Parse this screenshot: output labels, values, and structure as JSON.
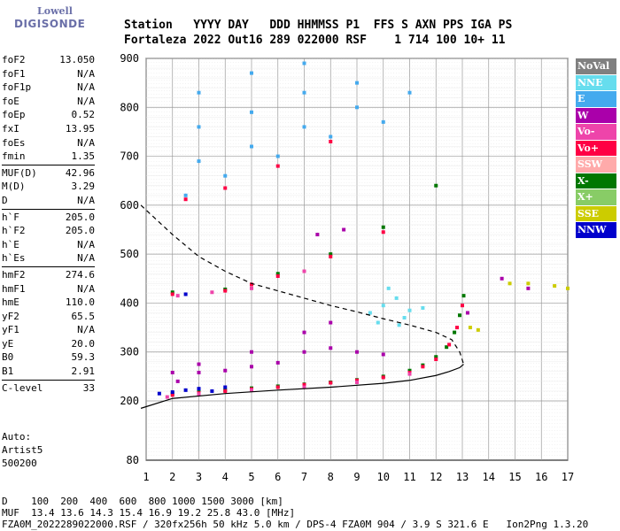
{
  "logo": {
    "line1": "Lowell",
    "line2": "DIGISONDE"
  },
  "header": {
    "line1": "Station   YYYY DAY   DDD HHMMSS P1  FFS S AXN PPS IGA PS",
    "line2": "Fortaleza 2022 Out16 289 022000 RSF    1 714 100 10+ 11"
  },
  "params": [
    [
      {
        "k": "foF2",
        "v": "13.050"
      },
      {
        "k": "foF1",
        "v": "N/A"
      },
      {
        "k": "foF1p",
        "v": "N/A"
      },
      {
        "k": "foE",
        "v": "N/A"
      },
      {
        "k": "foEp",
        "v": "0.52"
      },
      {
        "k": "fxI",
        "v": "13.95"
      },
      {
        "k": "foEs",
        "v": "N/A"
      },
      {
        "k": "fmin",
        "v": "1.35"
      }
    ],
    [
      {
        "k": "MUF(D)",
        "v": "42.96"
      },
      {
        "k": "M(D)",
        "v": "3.29"
      },
      {
        "k": "D",
        "v": "N/A"
      }
    ],
    [
      {
        "k": "h`F",
        "v": "205.0"
      },
      {
        "k": "h`F2",
        "v": "205.0"
      },
      {
        "k": "h`E",
        "v": "N/A"
      },
      {
        "k": "h`Es",
        "v": "N/A"
      }
    ],
    [
      {
        "k": "hmF2",
        "v": "274.6"
      },
      {
        "k": "hmF1",
        "v": "N/A"
      },
      {
        "k": "hmE",
        "v": "110.0"
      },
      {
        "k": "yF2",
        "v": "65.5"
      },
      {
        "k": "yF1",
        "v": "N/A"
      },
      {
        "k": "yE",
        "v": "20.0"
      },
      {
        "k": "B0",
        "v": "59.3"
      },
      {
        "k": "B1",
        "v": "2.91"
      }
    ],
    [
      {
        "k": "C-level",
        "v": "33"
      }
    ]
  ],
  "auto": {
    "line1": "Auto:",
    "line2": "Artist5",
    "line3": "500200"
  },
  "legend": [
    {
      "label": "NoVal",
      "color": "#808080"
    },
    {
      "label": "NNE",
      "color": "#66ddee"
    },
    {
      "label": "E",
      "color": "#44aaee"
    },
    {
      "label": "W",
      "color": "#aa00aa"
    },
    {
      "label": "Vo-",
      "color": "#ee44aa"
    },
    {
      "label": "Vo+",
      "color": "#ff0044"
    },
    {
      "label": "SSW",
      "color": "#ffaaaa"
    },
    {
      "label": "X-",
      "color": "#007700"
    },
    {
      "label": "X+",
      "color": "#88cc66"
    },
    {
      "label": "SSE",
      "color": "#cccc00"
    },
    {
      "label": "NNW",
      "color": "#0000cc"
    }
  ],
  "footer": {
    "line1": "D    100  200  400  600  800 1000 1500 3000 [km]",
    "line2": "MUF  13.4 13.6 14.3 15.4 16.9 19.2 25.8 43.0 [MHz]",
    "line3": "FZA0M_2022289022000.RSF / 320fx256h 50 kHz 5.0 km / DPS-4 FZA0M 904 / 3.9 S 321.6 E   Ion2Png 1.3.20"
  },
  "chart_data": {
    "type": "scatter",
    "title": "",
    "xlabel": "",
    "ylabel": "",
    "xlim": [
      1,
      17
    ],
    "ylim": [
      80,
      900
    ],
    "xticks": [
      1,
      2,
      3,
      4,
      5,
      6,
      7,
      8,
      9,
      10,
      11,
      12,
      13,
      14,
      15,
      16,
      17
    ],
    "yticks": [
      80,
      200,
      300,
      400,
      500,
      600,
      700,
      800,
      900
    ],
    "grid": true,
    "series": [
      {
        "name": "X-",
        "color": "#007700",
        "points": [
          [
            2.0,
            215
          ],
          [
            3.0,
            218
          ],
          [
            4.0,
            222
          ],
          [
            5.0,
            226
          ],
          [
            6.0,
            230
          ],
          [
            7.0,
            234
          ],
          [
            8.0,
            238
          ],
          [
            9.0,
            243
          ],
          [
            10.0,
            250
          ],
          [
            11.0,
            262
          ],
          [
            11.5,
            273
          ],
          [
            12.0,
            290
          ],
          [
            12.4,
            310
          ],
          [
            12.7,
            340
          ],
          [
            12.9,
            375
          ],
          [
            13.05,
            415
          ],
          [
            2.0,
            422
          ],
          [
            4.0,
            428
          ],
          [
            6.0,
            460
          ],
          [
            8.0,
            500
          ],
          [
            10.0,
            555
          ],
          [
            12.0,
            640
          ]
        ]
      },
      {
        "name": "Vo+",
        "color": "#ff0044",
        "points": [
          [
            2.0,
            212
          ],
          [
            3.0,
            216
          ],
          [
            4.0,
            220
          ],
          [
            5.0,
            224
          ],
          [
            6.0,
            228
          ],
          [
            7.0,
            233
          ],
          [
            8.0,
            237
          ],
          [
            9.0,
            242
          ],
          [
            10.0,
            248
          ],
          [
            11.0,
            258
          ],
          [
            11.5,
            270
          ],
          [
            12.0,
            285
          ],
          [
            12.5,
            315
          ],
          [
            12.8,
            350
          ],
          [
            13.0,
            395
          ],
          [
            2.0,
            418
          ],
          [
            4.0,
            425
          ],
          [
            5.0,
            438
          ],
          [
            6.0,
            455
          ],
          [
            8.0,
            495
          ],
          [
            10.0,
            545
          ],
          [
            2.5,
            612
          ],
          [
            4.0,
            635
          ],
          [
            6.0,
            680
          ],
          [
            8.0,
            730
          ]
        ]
      },
      {
        "name": "W",
        "color": "#aa00aa",
        "points": [
          [
            2.2,
            240
          ],
          [
            3.0,
            258
          ],
          [
            4.0,
            262
          ],
          [
            5.0,
            270
          ],
          [
            6.0,
            278
          ],
          [
            7.0,
            300
          ],
          [
            8.0,
            308
          ],
          [
            9.0,
            300
          ],
          [
            10.0,
            295
          ],
          [
            2.0,
            258
          ],
          [
            3.0,
            275
          ],
          [
            5.0,
            300
          ],
          [
            7.0,
            340
          ],
          [
            8.0,
            360
          ],
          [
            8.5,
            550
          ],
          [
            7.5,
            540
          ],
          [
            13.2,
            380
          ],
          [
            14.5,
            450
          ],
          [
            15.5,
            430
          ]
        ]
      },
      {
        "name": "E",
        "color": "#44aaee",
        "points": [
          [
            2.5,
            620
          ],
          [
            4.0,
            660
          ],
          [
            6.0,
            700
          ],
          [
            8.0,
            740
          ],
          [
            10.0,
            770
          ],
          [
            3.0,
            690
          ],
          [
            5.0,
            720
          ],
          [
            7.0,
            760
          ],
          [
            9.0,
            800
          ],
          [
            11.0,
            830
          ],
          [
            3.0,
            760
          ],
          [
            5.0,
            790
          ],
          [
            7.0,
            830
          ],
          [
            9.0,
            850
          ],
          [
            3.0,
            830
          ],
          [
            5.0,
            870
          ],
          [
            7.0,
            890
          ]
        ]
      },
      {
        "name": "NNE",
        "color": "#66ddee",
        "points": [
          [
            9.5,
            380
          ],
          [
            10.0,
            395
          ],
          [
            10.5,
            410
          ],
          [
            11.0,
            385
          ],
          [
            9.8,
            360
          ],
          [
            10.8,
            370
          ],
          [
            11.5,
            390
          ],
          [
            10.2,
            430
          ],
          [
            10.6,
            355
          ]
        ]
      },
      {
        "name": "NNW",
        "color": "#0000cc",
        "points": [
          [
            1.5,
            215
          ],
          [
            2.0,
            218
          ],
          [
            2.5,
            222
          ],
          [
            3.0,
            225
          ],
          [
            3.5,
            220
          ],
          [
            4.0,
            228
          ],
          [
            2.5,
            418
          ]
        ]
      },
      {
        "name": "SSE",
        "color": "#cccc00",
        "points": [
          [
            13.3,
            350
          ],
          [
            13.6,
            345
          ],
          [
            14.8,
            440
          ],
          [
            15.5,
            440
          ],
          [
            16.5,
            435
          ],
          [
            17.0,
            430
          ]
        ]
      },
      {
        "name": "Vo-",
        "color": "#ee44aa",
        "points": [
          [
            1.8,
            208
          ],
          [
            3.0,
            214
          ],
          [
            5.0,
            222
          ],
          [
            7.0,
            228
          ],
          [
            9.0,
            238
          ],
          [
            11.0,
            255
          ],
          [
            2.2,
            415
          ],
          [
            3.5,
            422
          ],
          [
            5.0,
            430
          ],
          [
            7.0,
            465
          ]
        ]
      }
    ],
    "profile_line": {
      "x": [
        0.8,
        2,
        4,
        6,
        8,
        10,
        11,
        12,
        12.5,
        12.9,
        13.05
      ],
      "y": [
        185,
        205,
        215,
        222,
        228,
        236,
        242,
        252,
        260,
        268,
        275
      ]
    },
    "profile_dashed": {
      "x": [
        0.8,
        2,
        3,
        4,
        5,
        6,
        7,
        8,
        9,
        10,
        11,
        12,
        12.6,
        12.9,
        13.05
      ],
      "y": [
        600,
        540,
        495,
        465,
        440,
        425,
        410,
        395,
        382,
        368,
        355,
        340,
        325,
        300,
        275
      ]
    }
  }
}
